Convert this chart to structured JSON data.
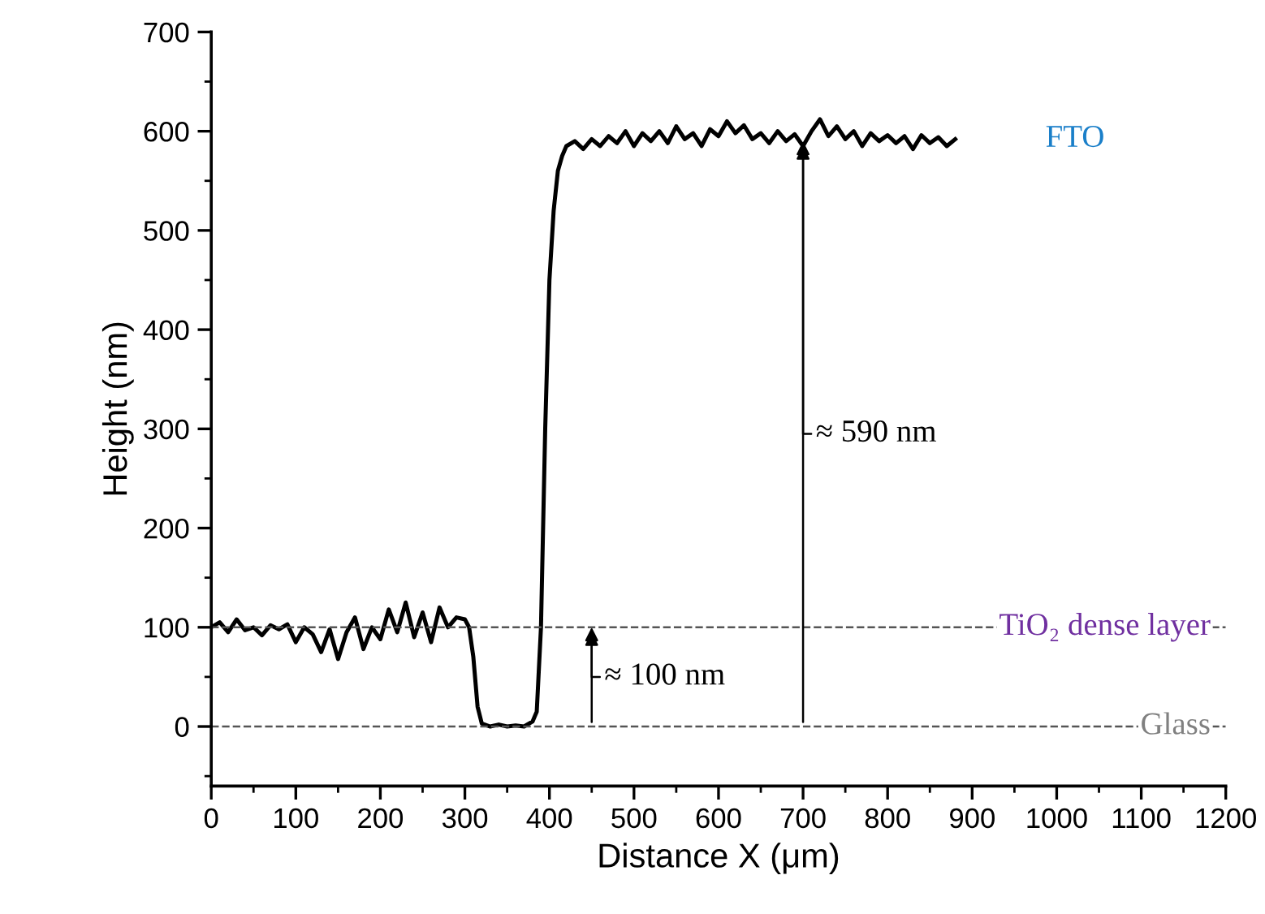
{
  "chart_data": {
    "type": "line",
    "xlabel": "Distance X (μm)",
    "ylabel": "Height (nm)",
    "xlim": [
      0,
      1200
    ],
    "ylim": [
      -60,
      700
    ],
    "xticks": [
      0,
      100,
      200,
      300,
      400,
      500,
      600,
      700,
      800,
      900,
      1000,
      1100,
      1200
    ],
    "yticks": [
      0,
      100,
      200,
      300,
      400,
      500,
      600,
      700
    ],
    "grid": false,
    "marker": "none",
    "line_style": "solid",
    "series": [
      {
        "color": "#000000",
        "x": [
          0,
          10,
          20,
          30,
          40,
          50,
          60,
          70,
          80,
          90,
          100,
          110,
          120,
          130,
          140,
          150,
          160,
          170,
          180,
          190,
          200,
          210,
          220,
          230,
          240,
          250,
          260,
          270,
          280,
          290,
          300,
          305,
          310,
          315,
          320,
          330,
          340,
          350,
          360,
          370,
          380,
          385,
          390,
          395,
          400,
          405,
          410,
          415,
          420,
          430,
          440,
          450,
          460,
          470,
          480,
          490,
          500,
          510,
          520,
          530,
          540,
          550,
          560,
          570,
          580,
          590,
          600,
          610,
          620,
          630,
          640,
          650,
          660,
          670,
          680,
          690,
          700,
          710,
          720,
          730,
          740,
          750,
          760,
          770,
          780,
          790,
          800,
          810,
          820,
          830,
          840,
          850,
          860,
          870,
          880
        ],
        "values": [
          100,
          105,
          95,
          108,
          97,
          100,
          92,
          102,
          98,
          103,
          85,
          100,
          93,
          75,
          98,
          68,
          95,
          110,
          78,
          100,
          88,
          118,
          95,
          125,
          90,
          115,
          85,
          120,
          100,
          110,
          108,
          100,
          70,
          20,
          3,
          0,
          2,
          0,
          1,
          0,
          5,
          15,
          100,
          300,
          450,
          520,
          560,
          575,
          585,
          590,
          582,
          592,
          585,
          595,
          588,
          600,
          585,
          598,
          590,
          600,
          588,
          605,
          592,
          598,
          585,
          602,
          595,
          610,
          598,
          606,
          592,
          598,
          588,
          600,
          590,
          597,
          585,
          600,
          612,
          595,
          605,
          592,
          600,
          585,
          598,
          590,
          596,
          588,
          595,
          582,
          596,
          588,
          594,
          585,
          592
        ]
      }
    ],
    "ref_lines": [
      {
        "axis": "y",
        "value": 100,
        "label": "TiO₂ dense layer",
        "color": "#555555",
        "line_style": "dashed"
      },
      {
        "axis": "y",
        "value": 0,
        "label": "Glass",
        "color": "#555555",
        "line_style": "dashed"
      }
    ],
    "annotations": [
      {
        "text": "≈ 100 nm",
        "x": 450,
        "y": 100
      },
      {
        "text": "≈ 590 nm",
        "x": 700,
        "y": 590
      },
      "FTO"
    ]
  }
}
